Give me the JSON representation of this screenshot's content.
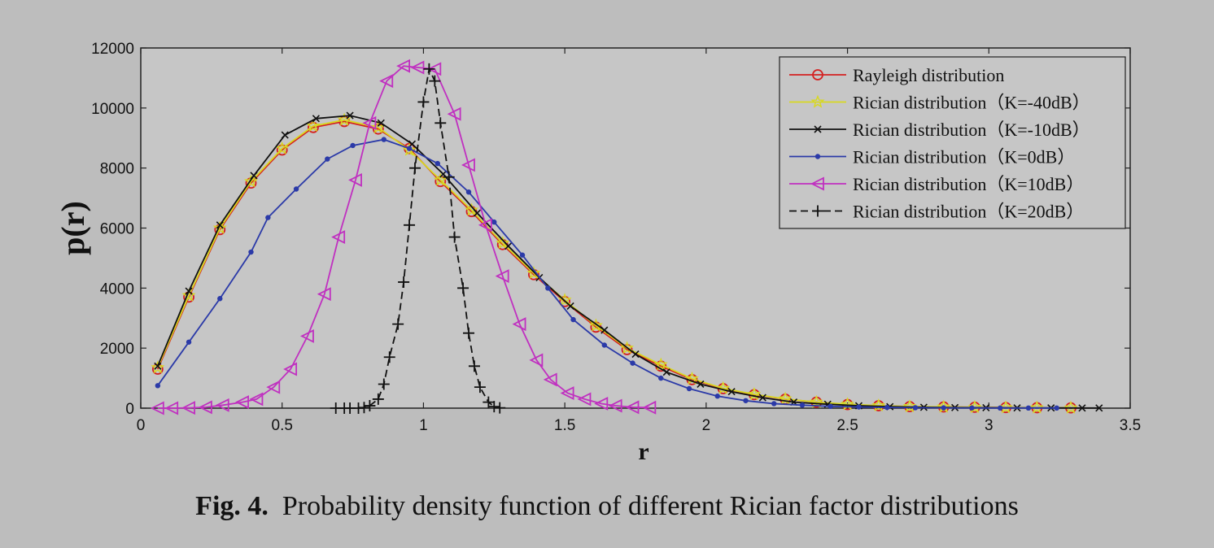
{
  "caption": {
    "label": "Fig. 4.",
    "text": "Probability density function of different Rician factor distributions"
  },
  "chart_data": {
    "type": "line",
    "title": "",
    "xlabel": "r",
    "ylabel": "p(r)",
    "xlim": [
      0,
      3.5
    ],
    "ylim": [
      0,
      12000
    ],
    "xticks": [
      0,
      0.5,
      1,
      1.5,
      2,
      2.5,
      3,
      3.5
    ],
    "xtick_labels": [
      "0",
      "0.5",
      "1",
      "1.5",
      "2",
      "2.5",
      "3",
      "3.5"
    ],
    "yticks": [
      0,
      2000,
      4000,
      6000,
      8000,
      10000,
      12000
    ],
    "ytick_labels": [
      "0",
      "2000",
      "4000",
      "6000",
      "8000",
      "10000",
      "12000"
    ],
    "grid": false,
    "legend_position": "top-right",
    "series": [
      {
        "name": "Rayleigh distribution",
        "color": "#d42020",
        "marker": "circle",
        "x": [
          0.06,
          0.17,
          0.28,
          0.39,
          0.5,
          0.61,
          0.72,
          0.84,
          0.95,
          1.06,
          1.17,
          1.28,
          1.39,
          1.5,
          1.61,
          1.72,
          1.84,
          1.95,
          2.06,
          2.17,
          2.28,
          2.39,
          2.5,
          2.61,
          2.72,
          2.84,
          2.95,
          3.06,
          3.17,
          3.29
        ],
        "y": [
          1300,
          3700,
          5950,
          7500,
          8600,
          9350,
          9550,
          9300,
          8650,
          7550,
          6550,
          5450,
          4450,
          3550,
          2700,
          1950,
          1400,
          950,
          650,
          450,
          300,
          200,
          120,
          80,
          50,
          40,
          30,
          20,
          15,
          10
        ]
      },
      {
        "name": "Rician distribution（K=-40dB）",
        "color": "#d8d820",
        "marker": "star",
        "x": [
          0.06,
          0.17,
          0.28,
          0.39,
          0.5,
          0.61,
          0.72,
          0.84,
          0.95,
          1.06,
          1.17,
          1.28,
          1.39,
          1.5,
          1.61,
          1.72,
          1.84,
          1.95,
          2.06,
          2.17,
          2.28,
          2.39,
          2.5,
          2.61,
          2.72,
          2.84,
          2.95,
          3.06,
          3.17,
          3.29
        ],
        "y": [
          1350,
          3750,
          6000,
          7550,
          8650,
          9400,
          9600,
          9350,
          8600,
          7600,
          6600,
          5500,
          4500,
          3600,
          2750,
          2000,
          1450,
          980,
          660,
          460,
          310,
          200,
          130,
          85,
          55,
          40,
          30,
          20,
          15,
          10
        ]
      },
      {
        "name": "Rician distribution（K=-10dB）",
        "color": "#111111",
        "marker": "x",
        "x": [
          0.06,
          0.17,
          0.28,
          0.4,
          0.51,
          0.62,
          0.74,
          0.85,
          0.96,
          1.07,
          1.19,
          1.3,
          1.41,
          1.52,
          1.64,
          1.75,
          1.86,
          1.98,
          2.09,
          2.2,
          2.31,
          2.43,
          2.54,
          2.65,
          2.77,
          2.88,
          2.99,
          3.1,
          3.22,
          3.33,
          3.39
        ],
        "y": [
          1400,
          3900,
          6100,
          7750,
          9100,
          9650,
          9750,
          9500,
          8800,
          7800,
          6500,
          5400,
          4350,
          3400,
          2600,
          1800,
          1200,
          800,
          550,
          350,
          200,
          130,
          80,
          50,
          30,
          20,
          15,
          10,
          8,
          5,
          5
        ]
      },
      {
        "name": "Rician distribution（K=0dB）",
        "color": "#2b3aa8",
        "marker": "dot",
        "x": [
          0.06,
          0.17,
          0.28,
          0.39,
          0.45,
          0.55,
          0.66,
          0.75,
          0.86,
          0.95,
          1.05,
          1.16,
          1.25,
          1.35,
          1.44,
          1.53,
          1.64,
          1.74,
          1.84,
          1.94,
          2.04,
          2.14,
          2.24,
          2.34,
          2.44,
          2.54,
          2.64,
          2.74,
          2.84,
          2.94,
          3.04,
          3.14,
          3.24
        ],
        "y": [
          750,
          2200,
          3650,
          5200,
          6350,
          7300,
          8300,
          8750,
          8950,
          8650,
          8150,
          7200,
          6200,
          5100,
          4000,
          2950,
          2100,
          1500,
          1000,
          650,
          400,
          250,
          150,
          100,
          60,
          40,
          25,
          15,
          10,
          8,
          5,
          5,
          5
        ]
      },
      {
        "name": "Rician distribution（K=10dB）",
        "color": "#c030c0",
        "marker": "triangle-left",
        "x": [
          0.06,
          0.11,
          0.17,
          0.23,
          0.29,
          0.36,
          0.41,
          0.47,
          0.53,
          0.59,
          0.65,
          0.7,
          0.76,
          0.81,
          0.87,
          0.93,
          0.98,
          1.04,
          1.11,
          1.16,
          1.22,
          1.28,
          1.34,
          1.4,
          1.45,
          1.51,
          1.57,
          1.63,
          1.68,
          1.74,
          1.8
        ],
        "y": [
          0,
          0,
          10,
          30,
          100,
          200,
          300,
          700,
          1300,
          2400,
          3800,
          5700,
          7600,
          9500,
          10900,
          11400,
          11350,
          11300,
          9800,
          8100,
          6100,
          4400,
          2800,
          1600,
          950,
          500,
          300,
          150,
          80,
          30,
          20
        ]
      },
      {
        "name": "Rician distribution（K=20dB）",
        "color": "#111111",
        "marker": "plus",
        "dash": true,
        "x": [
          0.69,
          0.72,
          0.74,
          0.77,
          0.79,
          0.81,
          0.84,
          0.86,
          0.88,
          0.91,
          0.93,
          0.95,
          0.97,
          1,
          1.02,
          1.04,
          1.06,
          1.09,
          1.11,
          1.14,
          1.16,
          1.18,
          1.2,
          1.23,
          1.25,
          1.27
        ],
        "y": [
          0,
          0,
          0,
          0,
          20,
          80,
          300,
          800,
          1700,
          2800,
          4200,
          6100,
          8000,
          10200,
          11300,
          10900,
          9500,
          7700,
          5700,
          4000,
          2500,
          1400,
          700,
          200,
          50,
          10
        ]
      }
    ]
  }
}
